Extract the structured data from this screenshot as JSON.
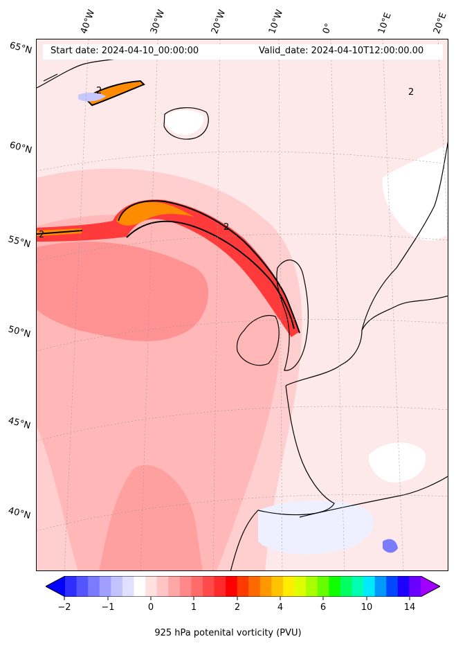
{
  "map": {
    "start_date": "Start date: 2024-04-10_00:00:00",
    "valid_date": "Valid_date: 2024-04-10T12:00:00.00",
    "longitude_labels": [
      "40°W",
      "30°W",
      "20°W",
      "10°W",
      "0°",
      "10°E",
      "20°E"
    ],
    "latitude_labels": [
      "65°N",
      "60°N",
      "55°N",
      "50°N",
      "45°N",
      "40°N"
    ],
    "contour_label": "2",
    "contour_level_pvu": 2
  },
  "colorbar": {
    "title": "925 hPa potenital vorticity (PVU)",
    "tick_labels": [
      "−2",
      "−1",
      "0",
      "1",
      "2",
      "4",
      "6",
      "10",
      "14"
    ],
    "colors": [
      "#0000ff",
      "#2e2eff",
      "#5555ff",
      "#7b7bff",
      "#9f9fff",
      "#c2c2ff",
      "#e1e1ff",
      "#ffffff",
      "#ffe1e1",
      "#ffc4c4",
      "#ffa6a6",
      "#ff8888",
      "#ff6a6a",
      "#ff4a4a",
      "#ff2a2a",
      "#ff0000",
      "#ff3a00",
      "#ff6a00",
      "#ff9800",
      "#ffc400",
      "#ffee00",
      "#ddff00",
      "#a8ff00",
      "#66ff00",
      "#10ff00",
      "#00ff60",
      "#00ffb0",
      "#00eaff",
      "#0098ff",
      "#0048ff",
      "#1e00ff",
      "#6a00ff",
      "#a000ff"
    ]
  }
}
